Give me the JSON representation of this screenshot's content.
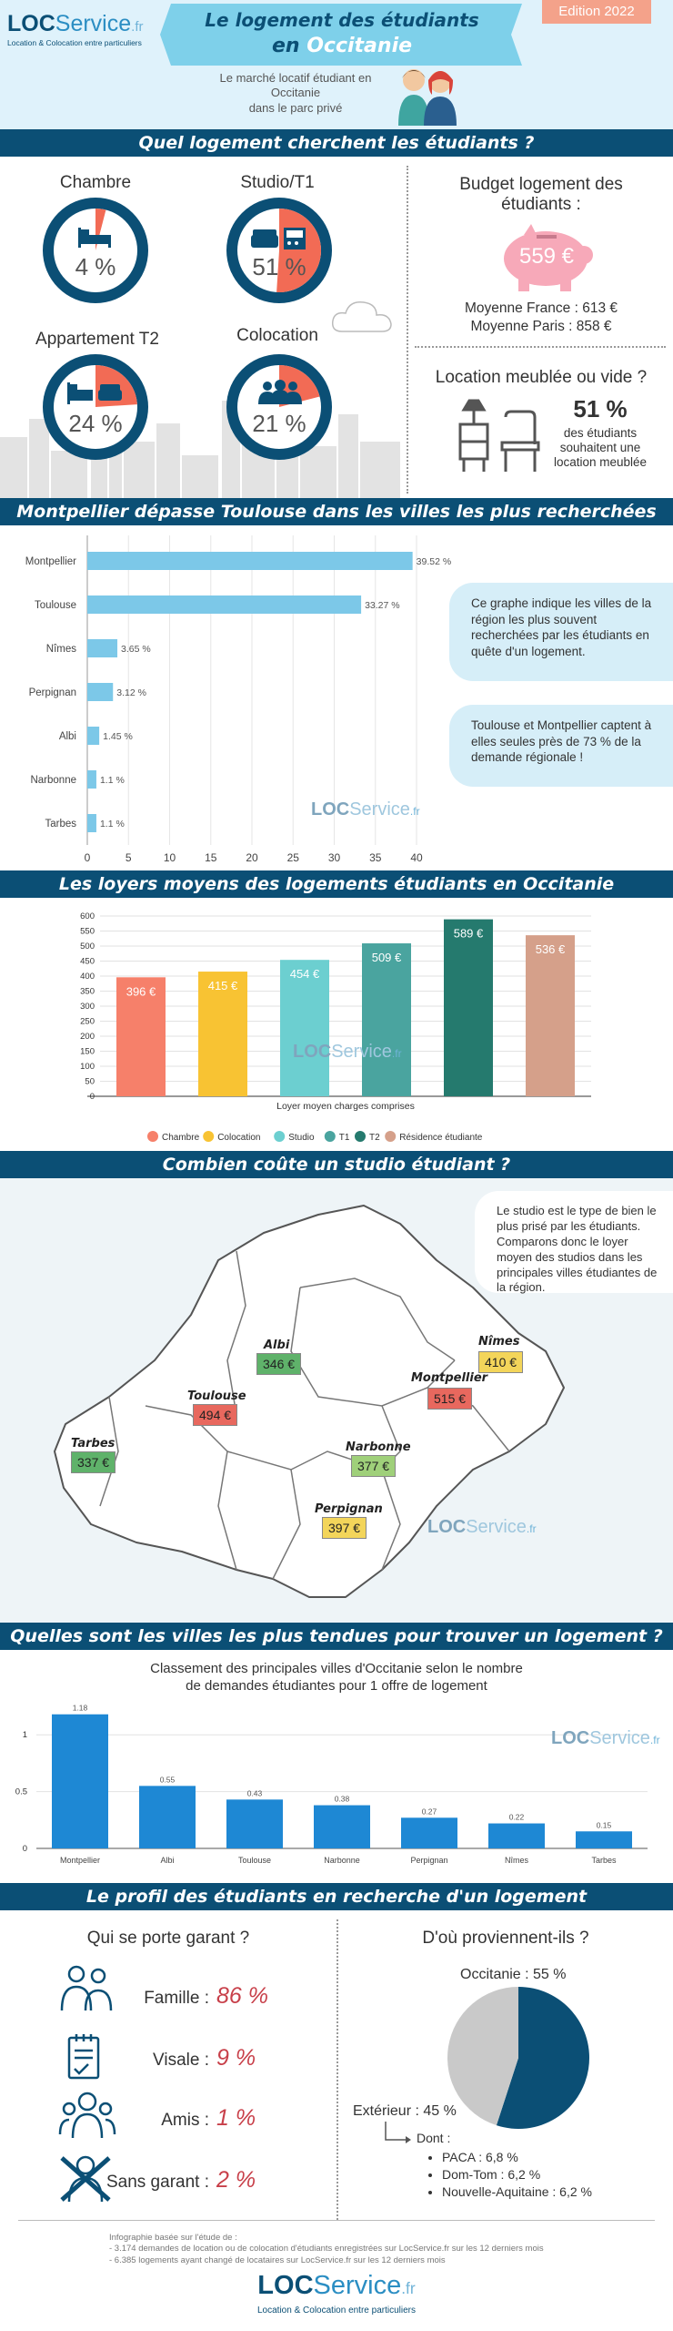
{
  "header": {
    "logo": {
      "loc": "LOC",
      "service": "Service",
      "fr": ".fr",
      "tagline": "Location & Colocation entre particuliers"
    },
    "title_line1": "Le logement des étudiants",
    "title_line2_prefix": "en ",
    "title_line2_highlight": "Occitanie",
    "edition": "Edition 2022",
    "subtitle": [
      "Le marché locatif étudiant en",
      "Occitanie",
      "dans le parc privé"
    ]
  },
  "section1": {
    "title": "Quel logement cherchent les étudiants ?",
    "items": [
      {
        "label": "Chambre",
        "value": "4 %",
        "share": 4,
        "icon": "bed-icon"
      },
      {
        "label": "Studio/T1",
        "value": "51 %",
        "share": 51,
        "icon": "studio-icon"
      },
      {
        "label": "Appartement T2",
        "value": "24 %",
        "share": 24,
        "icon": "apartment-icon"
      },
      {
        "label": "Colocation",
        "value": "21 %",
        "share": 21,
        "icon": "group-icon"
      }
    ],
    "budget": {
      "title_line1": "Budget logement des",
      "title_line2": "étudiants :",
      "value": "559 €",
      "france": "Moyenne France : 613 €",
      "paris": "Moyenne Paris : 858 €"
    },
    "furnished": {
      "title": "Location meublée ou vide ?",
      "value": "51 %",
      "text": [
        "des étudiants",
        "souhaitent une",
        "location meublée"
      ]
    },
    "colors": {
      "ring": "#0b4f75",
      "accent": "#f26b55"
    }
  },
  "section2": {
    "title": "Montpellier dépasse Toulouse dans les villes les plus recherchées",
    "chart_data": {
      "type": "bar",
      "orientation": "horizontal",
      "categories": [
        "Montpellier",
        "Toulouse",
        "Nîmes",
        "Perpignan",
        "Albi",
        "Narbonne",
        "Tarbes"
      ],
      "values": [
        39.52,
        33.27,
        3.65,
        3.12,
        1.45,
        1.1,
        1.1
      ],
      "value_labels": [
        "39.52 %",
        "33.27 %",
        "3.65 %",
        "3.12 %",
        "1.45 %",
        "1.1 %",
        "1.1 %"
      ],
      "xlim": [
        0,
        40
      ],
      "ticks": [
        "0",
        "5",
        "10",
        "15",
        "20",
        "25",
        "30",
        "35",
        "40"
      ],
      "grid": true,
      "color": "#7cc8e8"
    },
    "bubble1": "Ce graphe indique les villes de la région les plus souvent recherchées par les étudiants en quête d'un logement.",
    "bubble2": "Toulouse et Montpellier captent à elles seules près de 73 % de la demande régionale !"
  },
  "section3": {
    "title": "Les loyers moyens des logements étudiants en Occitanie",
    "chart_data": {
      "type": "bar",
      "categories": [
        "Chambre",
        "Colocation",
        "Studio",
        "T1",
        "T2",
        "Résidence étudiante"
      ],
      "values": [
        396,
        415,
        454,
        509,
        589,
        536
      ],
      "value_labels": [
        "396 €",
        "415 €",
        "454 €",
        "509 €",
        "589 €",
        "536 €"
      ],
      "colors": [
        "#f6806a",
        "#f8c333",
        "#6ccfd0",
        "#4aa49f",
        "#257a6e",
        "#d5a08a"
      ],
      "ylim": [
        0,
        600
      ],
      "yticks": [
        "0",
        "50",
        "100",
        "150",
        "200",
        "250",
        "300",
        "350",
        "400",
        "450",
        "500",
        "550",
        "600"
      ],
      "xlabel": "Loyer moyen charges comprises",
      "grid": true,
      "legend": "bottom"
    }
  },
  "section4": {
    "title": "Combien coûte un studio étudiant ?",
    "bubble": "Le studio est le type de bien le plus prisé par les étudiants. Comparons donc le loyer moyen des studios dans les principales villes étudiantes de la région.",
    "cities": [
      {
        "name": "Albi",
        "price": "346 €",
        "color": "#5fb26a"
      },
      {
        "name": "Nîmes",
        "price": "410 €",
        "color": "#f3d55a"
      },
      {
        "name": "Toulouse",
        "price": "494 €",
        "color": "#e8685e"
      },
      {
        "name": "Montpellier",
        "price": "515 €",
        "color": "#e8685e"
      },
      {
        "name": "Tarbes",
        "price": "337 €",
        "color": "#5fb26a"
      },
      {
        "name": "Narbonne",
        "price": "377 €",
        "color": "#9fd07a"
      },
      {
        "name": "Perpignan",
        "price": "397 €",
        "color": "#f3d55a"
      }
    ]
  },
  "section5": {
    "title": "Quelles sont les villes les plus tendues pour trouver un logement  ?",
    "subtitle_line1": "Classement des principales villes d'Occitanie selon le nombre",
    "subtitle_line2": "de demandes étudiantes pour 1 offre de logement",
    "chart_data": {
      "type": "bar",
      "categories": [
        "Montpellier",
        "Albi",
        "Toulouse",
        "Narbonne",
        "Perpignan",
        "Nîmes",
        "Tarbes"
      ],
      "values": [
        1.18,
        0.55,
        0.43,
        0.38,
        0.27,
        0.22,
        0.15
      ],
      "value_labels": [
        "1.18",
        "0.55",
        "0.43",
        "0.38",
        "0.27",
        "0.22",
        "0.15"
      ],
      "ylim": [
        0,
        1.25
      ],
      "yticks": [
        "0",
        "0.5",
        "1"
      ],
      "color": "#1e88d4",
      "grid": true
    }
  },
  "section6": {
    "title": "Le profil des étudiants en recherche d'un logement",
    "guarantor": {
      "title": "Qui se porte garant ?",
      "items": [
        {
          "label": "Famille :",
          "value": "86 %",
          "icon": "family-icon"
        },
        {
          "label": "Visale :",
          "value": "9 %",
          "icon": "document-icon"
        },
        {
          "label": "Amis :",
          "value": "1 %",
          "icon": "friends-icon"
        },
        {
          "label": "Sans garant :",
          "value": "2 %",
          "icon": "no-guarantor-icon"
        }
      ]
    },
    "origin": {
      "title": "D'où proviennent-ils ?",
      "chart_data": {
        "type": "pie",
        "categories": [
          "Occitanie",
          "Extérieur"
        ],
        "values": [
          55,
          45
        ],
        "colors": [
          "#0b4f75",
          "#c9c9c9"
        ]
      },
      "label_occitanie": "Occitanie : 55 %",
      "label_exterieur": "Extérieur : 45 %",
      "dont": "Dont :",
      "details": [
        "PACA : 6,8 %",
        "Dom-Tom : 6,2 %",
        "Nouvelle-Aquitaine : 6,2 %"
      ]
    }
  },
  "footer": {
    "source_intro": "Infographie basée sur l'étude de :",
    "source_line1": "- 3.174 demandes de location ou de colocation d'étudiants enregistrées sur LocService.fr sur les 12 derniers mois",
    "source_line2": "- 6.385 logements ayant changé de locataires sur LocService.fr sur les 12 derniers mois",
    "logo_tagline": "Location & Colocation entre particuliers"
  }
}
